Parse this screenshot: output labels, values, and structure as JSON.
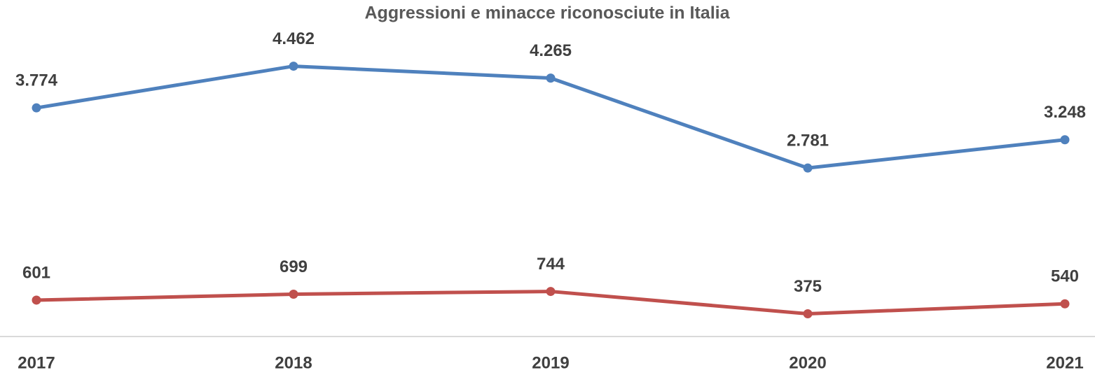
{
  "chart_data": {
    "type": "line",
    "title": "Aggressioni e minacce riconosciute in Italia",
    "categories": [
      "2017",
      "2018",
      "2019",
      "2020",
      "2021"
    ],
    "series": [
      {
        "color": "#4f81bd",
        "values": [
          3774,
          4462,
          4265,
          2781,
          3248
        ],
        "value_labels": [
          "3.774",
          "4.462",
          "4.265",
          "2.781",
          "3.248"
        ]
      },
      {
        "color": "#c0504d",
        "values": [
          601,
          699,
          744,
          375,
          540
        ]
      }
    ],
    "ylim": [
      0,
      5000
    ]
  }
}
